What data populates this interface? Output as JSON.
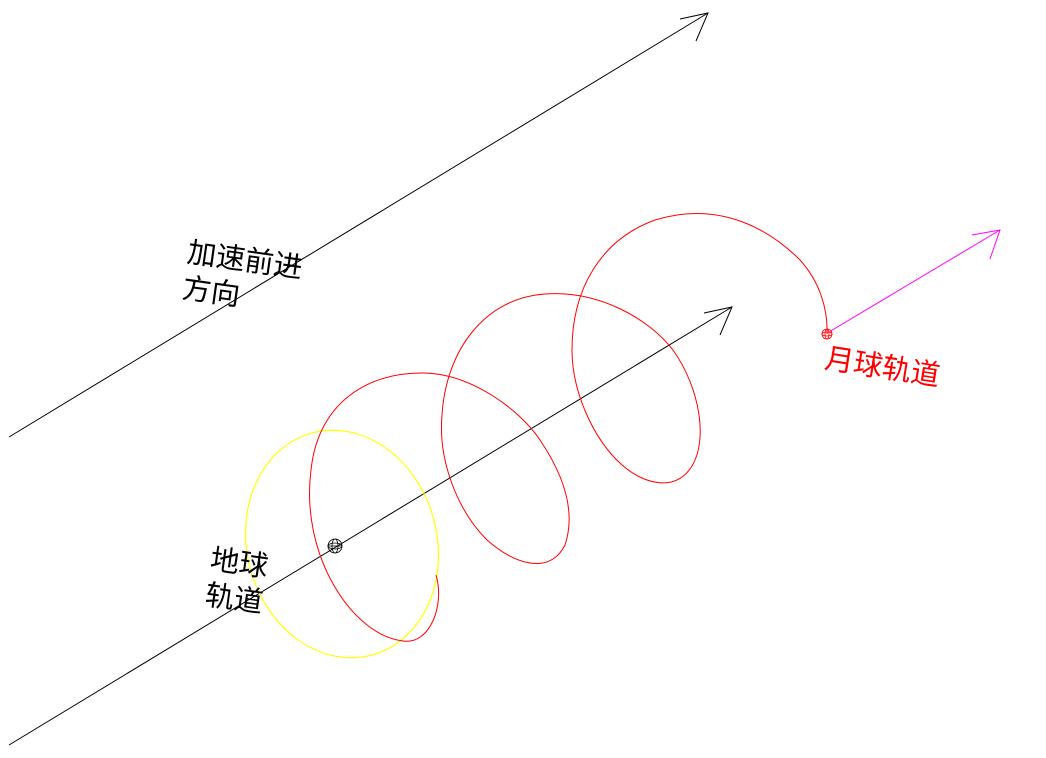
{
  "labels": {
    "acceleration_direction": "加速前进\n方向",
    "earth_orbit": "地球\n轨道",
    "moon_orbit": "月球轨道"
  },
  "colors": {
    "background": "#ffffff",
    "axis_lines": "#000000",
    "earth_orbit": "#ffff00",
    "moon_orbit": "#ff0000",
    "moon_label": "#ff0000",
    "moon_velocity_arrow": "#ff00ff"
  },
  "icons": {
    "earth": "earth-icon",
    "moon": "moon-icon"
  }
}
